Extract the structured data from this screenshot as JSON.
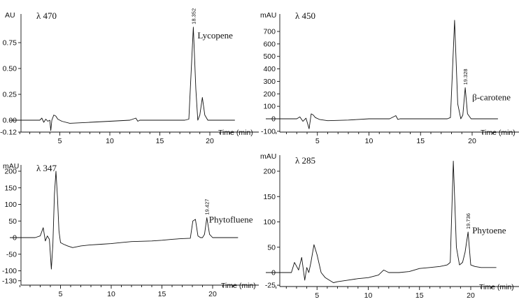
{
  "chart_data": [
    {
      "type": "line",
      "wavelength_label": "λ 470",
      "unit_label": "AU",
      "xlabel": "Time (min)",
      "xlim": [
        0,
        22.5
      ],
      "ylim": [
        -0.12,
        0.95
      ],
      "x_ticks": [
        5,
        10,
        15,
        20
      ],
      "y_ticks": [
        0.75,
        0.5,
        0.25,
        0.0,
        -0.12
      ],
      "y_tick_labels": [
        "0.75",
        "0.50",
        "0.25",
        "0.00",
        "-0.12"
      ],
      "peaks": [
        {
          "rt_label": "18.352",
          "x": 18.35,
          "y": 0.9,
          "compound": "Lycopene"
        }
      ],
      "series": [
        {
          "x": [
            0,
            3,
            3.2,
            3.4,
            3.6,
            3.8,
            4.0,
            4.1,
            4.2,
            4.4,
            4.6,
            4.8,
            5.2,
            6,
            8,
            10,
            12,
            12.6,
            12.8,
            13.0,
            14,
            16,
            17.5,
            17.9,
            18.1,
            18.35,
            18.6,
            18.8,
            19.0,
            19.25,
            19.5,
            19.8,
            20.5,
            22.5
          ],
          "y": [
            0,
            0,
            0.02,
            -0.02,
            0.01,
            -0.01,
            0.0,
            -0.1,
            0.0,
            0.05,
            0.04,
            0.01,
            -0.01,
            -0.03,
            -0.02,
            -0.01,
            0.0,
            0.02,
            -0.01,
            0.0,
            0.0,
            0.0,
            0.0,
            0.01,
            0.4,
            0.9,
            0.3,
            0.0,
            0.05,
            0.22,
            0.05,
            0.0,
            0.0,
            0.0
          ]
        }
      ]
    },
    {
      "type": "line",
      "wavelength_label": "λ 450",
      "unit_label": "mAU",
      "xlabel": "Time (min)",
      "xlim": [
        0,
        22.5
      ],
      "ylim": [
        -100,
        780
      ],
      "x_ticks": [
        5,
        10,
        15,
        20
      ],
      "y_ticks": [
        700,
        600,
        500,
        400,
        300,
        200,
        100,
        0,
        -100
      ],
      "y_tick_labels": [
        "700",
        "600",
        "500",
        "400",
        "300",
        "200",
        "100",
        "0",
        "-100"
      ],
      "peaks": [
        {
          "rt_label": "19.328",
          "x": 19.33,
          "y": 250,
          "compound": "β-carotene"
        }
      ],
      "series": [
        {
          "x": [
            0,
            3,
            3.3,
            3.6,
            3.9,
            4.2,
            4.4,
            4.6,
            4.8,
            5.2,
            6,
            8,
            10,
            12,
            12.6,
            12.8,
            13.0,
            14,
            16,
            17.6,
            17.9,
            18.1,
            18.3,
            18.6,
            18.9,
            19.1,
            19.33,
            19.55,
            19.9,
            20.5,
            22.5
          ],
          "y": [
            0,
            0,
            15,
            -20,
            5,
            -80,
            40,
            30,
            10,
            -5,
            -15,
            -10,
            0,
            0,
            25,
            -5,
            0,
            0,
            0,
            0,
            10,
            400,
            790,
            120,
            0,
            30,
            250,
            40,
            0,
            0,
            0
          ]
        }
      ]
    },
    {
      "type": "line",
      "wavelength_label": "λ 347",
      "unit_label": "mAU",
      "xlabel": "Time (min)",
      "xlim": [
        0,
        22.5
      ],
      "ylim": [
        -130,
        205
      ],
      "x_ticks": [
        5,
        10,
        15,
        20
      ],
      "y_ticks": [
        200,
        150,
        100,
        50,
        0,
        -50,
        -100,
        -130
      ],
      "y_tick_labels": [
        "200",
        "150",
        "100",
        "50",
        "0",
        "-50",
        "-100",
        "-130"
      ],
      "peaks": [
        {
          "rt_label": "19.427",
          "x": 19.43,
          "y": 60,
          "compound": "Phytofluene"
        }
      ],
      "series": [
        {
          "x": [
            0,
            2.5,
            3.0,
            3.3,
            3.5,
            3.7,
            3.9,
            4.1,
            4.25,
            4.4,
            4.55,
            4.7,
            4.85,
            5.0,
            5.3,
            5.7,
            6.2,
            7,
            8,
            9,
            10,
            11,
            12,
            14,
            15,
            16,
            17,
            17.8,
            18.05,
            18.3,
            18.55,
            18.8,
            19.0,
            19.2,
            19.43,
            19.7,
            20.0,
            21,
            22.5
          ],
          "y": [
            0,
            0,
            5,
            30,
            -10,
            5,
            -5,
            -95,
            -20,
            130,
            200,
            120,
            20,
            -15,
            -20,
            -25,
            -30,
            -25,
            -22,
            -20,
            -18,
            -15,
            -12,
            -10,
            -8,
            -5,
            -3,
            -2,
            50,
            55,
            5,
            0,
            0,
            10,
            60,
            10,
            0,
            0,
            0
          ]
        }
      ]
    },
    {
      "type": "line",
      "wavelength_label": "λ 285",
      "unit_label": "mAU",
      "xlabel": "Time (min)",
      "xlim": [
        0,
        22.5
      ],
      "ylim": [
        -25,
        225
      ],
      "x_ticks": [
        5,
        10,
        15,
        20
      ],
      "y_ticks": [
        200,
        150,
        100,
        50,
        0,
        -25
      ],
      "y_tick_labels": [
        "200",
        "150",
        "100",
        "50",
        "0",
        "-25"
      ],
      "peaks": [
        {
          "rt_label": "19.736",
          "x": 19.74,
          "y": 80,
          "compound": "Phytoene"
        }
      ],
      "series": [
        {
          "x": [
            0,
            2.5,
            2.8,
            3.2,
            3.5,
            3.8,
            4.0,
            4.2,
            4.4,
            4.7,
            5.0,
            5.4,
            5.8,
            6.2,
            6.6,
            7,
            8,
            9,
            10,
            11,
            11.5,
            12,
            13,
            14,
            15,
            16,
            17,
            17.7,
            18.0,
            18.3,
            18.6,
            18.9,
            19.2,
            19.45,
            19.74,
            20.0,
            20.4,
            21,
            22.5
          ],
          "y": [
            0,
            0,
            20,
            5,
            30,
            -15,
            10,
            0,
            20,
            55,
            35,
            0,
            -10,
            -15,
            -20,
            -18,
            -15,
            -12,
            -10,
            -5,
            5,
            0,
            0,
            2,
            8,
            10,
            12,
            15,
            20,
            220,
            50,
            15,
            20,
            40,
            80,
            15,
            12,
            10,
            10
          ]
        }
      ]
    }
  ]
}
